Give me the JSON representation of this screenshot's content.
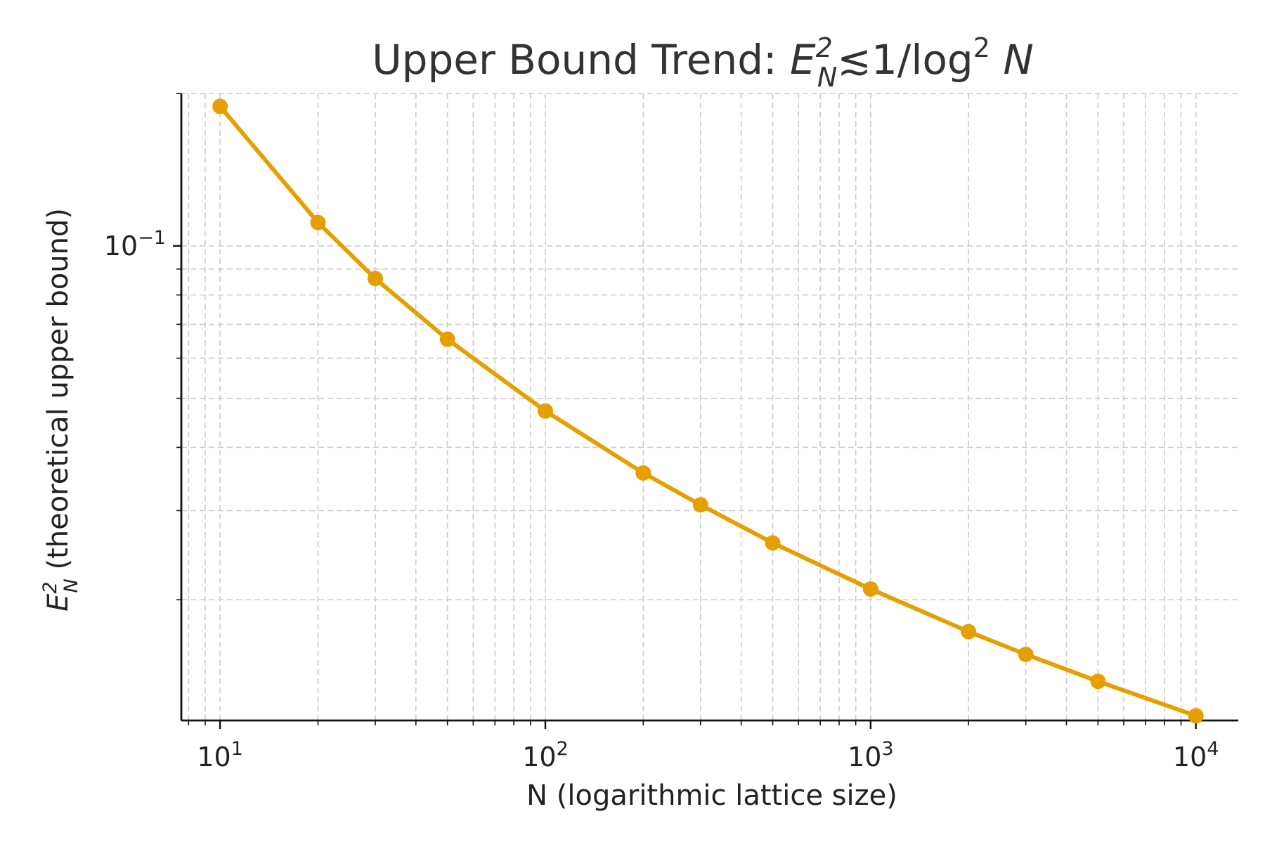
{
  "chart_data": {
    "type": "line",
    "title": {
      "prefix": "Upper Bound Trend: ",
      "base": "E",
      "sup": "2",
      "sub": "N",
      "mid": "≲1/log",
      "sup2": "2",
      "tail": " N"
    },
    "xlabel": "N (logarithmic lattice size)",
    "ylabel": {
      "base": "E",
      "sup": "2",
      "sub": "N",
      "text": " (theoretical upper bound)"
    },
    "x_scale": "log",
    "y_scale": "log",
    "xlim": [
      7.6,
      13500
    ],
    "ylim": [
      0.01155,
      0.2
    ],
    "x_ticks": [
      {
        "value": 10,
        "base": "10",
        "exp": "1"
      },
      {
        "value": 100,
        "base": "10",
        "exp": "2"
      },
      {
        "value": 1000,
        "base": "10",
        "exp": "3"
      },
      {
        "value": 10000,
        "base": "10",
        "exp": "4"
      }
    ],
    "y_ticks": [
      {
        "value": 0.1,
        "base": "10",
        "exp": "−1"
      }
    ],
    "grid": true,
    "color": "#E69F00",
    "marker": "circle",
    "series": [
      {
        "x": [
          10,
          20,
          30,
          50,
          100,
          200,
          300,
          500,
          1000,
          2000,
          3000,
          5000,
          10000
        ],
        "y": [
          0.1886,
          0.1112,
          0.0862,
          0.0654,
          0.0472,
          0.0356,
          0.0308,
          0.0259,
          0.021,
          0.0173,
          0.0156,
          0.0138,
          0.0118
        ]
      }
    ]
  }
}
